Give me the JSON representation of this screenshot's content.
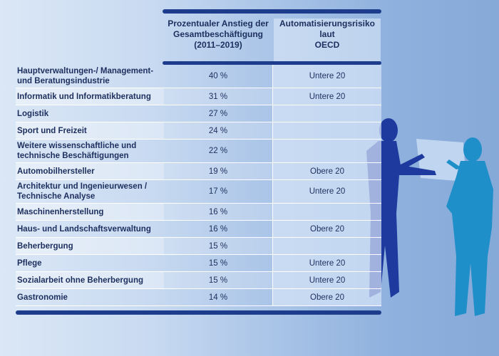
{
  "header": {
    "increase_col": "Prozentualer Anstieg der\nGesamtbeschäftigung\n(2011–2019)",
    "risk_col": "Automatisierungsrisiko\nlaut\nOECD"
  },
  "rows": [
    {
      "label": "Hauptverwaltungen-/ Management-\nund Beratungsindustrie",
      "increase": "40 %",
      "risk": "Untere 20"
    },
    {
      "label": "Informatik und Informatikberatung",
      "increase": "31 %",
      "risk": "Untere 20"
    },
    {
      "label": "Logistik",
      "increase": "27 %",
      "risk": ""
    },
    {
      "label": "Sport und Freizeit",
      "increase": "24 %",
      "risk": ""
    },
    {
      "label": "Weitere wissenschaftliche und\ntechnische Beschäftigungen",
      "increase": "22 %",
      "risk": ""
    },
    {
      "label": "Automobilhersteller",
      "increase": "19 %",
      "risk": "Obere 20"
    },
    {
      "label": "Architektur und Ingenieurwesen /\nTechnische Analyse",
      "increase": "17 %",
      "risk": "Untere 20"
    },
    {
      "label": "Maschinenherstellung",
      "increase": "16 %",
      "risk": ""
    },
    {
      "label": "Haus- und Landschaftsverwaltung",
      "increase": "16 %",
      "risk": "Obere 20"
    },
    {
      "label": "Beherbergung",
      "increase": "15 %",
      "risk": ""
    },
    {
      "label": "Pflege",
      "increase": "15 %",
      "risk": "Untere 20"
    },
    {
      "label": "Sozialarbeit ohne Beherbergung",
      "increase": "15 %",
      "risk": "Untere 20"
    },
    {
      "label": "Gastronomie",
      "increase": "14 %",
      "risk": "Obere 20"
    }
  ],
  "colors": {
    "accent": "#1d3c8c",
    "figure_left": "#1f3a9e",
    "figure_right": "#1f8fc9"
  }
}
